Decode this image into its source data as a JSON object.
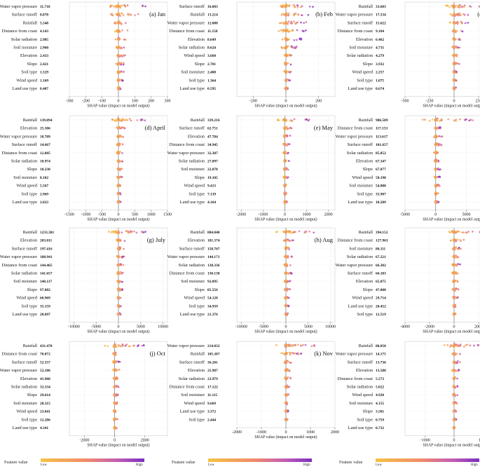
{
  "legend": {
    "title": "Feature value",
    "low": "Low",
    "high": "High"
  },
  "chart_data": [
    {
      "type": "scatter",
      "panel": "(a) Jan",
      "xlabel": "SHAP value (impact on model output)",
      "xlim": [
        -300,
        300
      ],
      "xticks": [
        -300,
        -200,
        -100,
        0,
        100,
        200,
        300
      ],
      "features": [
        {
          "name": "Water vapor pressure",
          "value": "11.718"
        },
        {
          "name": "Surface runoff",
          "value": "8.870"
        },
        {
          "name": "Rainfall",
          "value": "5.548"
        },
        {
          "name": "Distance from coast",
          "value": "4.143"
        },
        {
          "name": "Solar radiation",
          "value": "2.985"
        },
        {
          "name": "Soil moisture",
          "value": "2.960"
        },
        {
          "name": "Elevation",
          "value": "2.433"
        },
        {
          "name": "Slope",
          "value": "2.421"
        },
        {
          "name": "Soil type",
          "value": "1.529"
        },
        {
          "name": "Wind speed",
          "value": "1.169"
        },
        {
          "name": "Land use type",
          "value": "0.407"
        }
      ]
    },
    {
      "type": "scatter",
      "panel": "(b) Feb",
      "xlabel": "SHAP value (impact on model output)",
      "xlim": [
        -300,
        300
      ],
      "xticks": [
        -200,
        0,
        200
      ],
      "features": [
        {
          "name": "Surface runoff",
          "value": "16.003"
        },
        {
          "name": "Rainfall",
          "value": "13.214"
        },
        {
          "name": "Water vapor pressure",
          "value": "12.088"
        },
        {
          "name": "Distance from coast",
          "value": "11.158"
        },
        {
          "name": "Elevation",
          "value": "8.649"
        },
        {
          "name": "Solar radiation",
          "value": "8.624"
        },
        {
          "name": "Wind speed",
          "value": "3.660"
        },
        {
          "name": "Slope",
          "value": "2.701"
        },
        {
          "name": "Soil moisture",
          "value": "2.488"
        },
        {
          "name": "Soil type",
          "value": "1.364"
        },
        {
          "name": "Land use type",
          "value": "0.595"
        }
      ]
    },
    {
      "type": "scatter",
      "panel": "(c) March",
      "xlabel": "SHAP value (impact on model output)",
      "xlim": [
        -500,
        500
      ],
      "xticks": [
        -500,
        -250,
        0,
        250,
        500
      ],
      "features": [
        {
          "name": "Rainfall",
          "value": "33.603"
        },
        {
          "name": "Water vapor pressure",
          "value": "17.534"
        },
        {
          "name": "Surface runoff",
          "value": "15.622"
        },
        {
          "name": "Distance from coast",
          "value": "9.104"
        },
        {
          "name": "Elevation",
          "value": "6.462"
        },
        {
          "name": "Soil moisture",
          "value": "4.731"
        },
        {
          "name": "Solar radiation",
          "value": "4.279"
        },
        {
          "name": "Slope",
          "value": "3.932"
        },
        {
          "name": "Wind speed",
          "value": "2.257"
        },
        {
          "name": "Soil type",
          "value": "1.875"
        },
        {
          "name": "Land use type",
          "value": "0.674"
        }
      ]
    },
    {
      "type": "scatter",
      "panel": "(d) April",
      "xlabel": "SHAP value (impact on model output)",
      "xlim": [
        -1500,
        1500
      ],
      "xticks": [
        -1500,
        -1000,
        -500,
        0,
        500,
        1000,
        1500
      ],
      "features": [
        {
          "name": "Rainfall",
          "value": "139.894"
        },
        {
          "name": "Elevation",
          "value": "25.306"
        },
        {
          "name": "Water vapor pressure",
          "value": "18.709"
        },
        {
          "name": "Surface runoff",
          "value": "14.667"
        },
        {
          "name": "Distance from coast",
          "value": "12.805"
        },
        {
          "name": "Solar radiation",
          "value": "10.974"
        },
        {
          "name": "Slope",
          "value": "10.238"
        },
        {
          "name": "Soil moisture",
          "value": "8.102"
        },
        {
          "name": "Wind speed",
          "value": "5.567"
        },
        {
          "name": "Soil type",
          "value": "2.969"
        },
        {
          "name": "Land use type",
          "value": "2.023"
        }
      ]
    },
    {
      "type": "scatter",
      "panel": "(e) May",
      "xlabel": "SHAP value (impact on model output)",
      "xlim": [
        -2200,
        2300
      ],
      "xticks": [
        -2000,
        -1000,
        0,
        1000,
        2000
      ],
      "features": [
        {
          "name": "Rainfall",
          "value": "339.216"
        },
        {
          "name": "Surface runoff",
          "value": "62.751"
        },
        {
          "name": "Elevation",
          "value": "47.784"
        },
        {
          "name": "Distance from coast",
          "value": "34.945"
        },
        {
          "name": "Water vapor pressure",
          "value": "32.387"
        },
        {
          "name": "Solar radiation",
          "value": "27.097"
        },
        {
          "name": "Soil moisture",
          "value": "22.078"
        },
        {
          "name": "Slope",
          "value": "19.105"
        },
        {
          "name": "Wind speed",
          "value": "9.413"
        },
        {
          "name": "Soil type",
          "value": "7.139"
        },
        {
          "name": "Land use type",
          "value": "4.164"
        }
      ]
    },
    {
      "type": "scatter",
      "panel": "(f) June",
      "xlabel": "SHAP value (impact on model output)",
      "xlim": [
        -5000,
        11000
      ],
      "xticks": [
        -5000,
        0,
        5000,
        10000
      ],
      "features": [
        {
          "name": "Rainfall",
          "value": "986.589"
        },
        {
          "name": "Distance from coast",
          "value": "117.153"
        },
        {
          "name": "Water vapor pressure",
          "value": "113.617"
        },
        {
          "name": "Surface runoff",
          "value": "101.657"
        },
        {
          "name": "Solar radiation",
          "value": "85.852"
        },
        {
          "name": "Elevation",
          "value": "67.347"
        },
        {
          "name": "Slope",
          "value": "67.077"
        },
        {
          "name": "Wind speed",
          "value": "58.198"
        },
        {
          "name": "Soil moisture",
          "value": "54.888"
        },
        {
          "name": "Soil type",
          "value": "35.907"
        },
        {
          "name": "Land use type",
          "value": "18.289"
        }
      ]
    },
    {
      "type": "scatter",
      "panel": "(g) July",
      "xlabel": "SHAP value (impact on model output)",
      "xlim": [
        -11000,
        11000
      ],
      "xticks": [
        -10000,
        -5000,
        0,
        5000,
        10000
      ],
      "features": [
        {
          "name": "Rainfall",
          "value": "1233.381"
        },
        {
          "name": "Elevation",
          "value": "203.011"
        },
        {
          "name": "Surface runoff",
          "value": "197.416"
        },
        {
          "name": "Water vapor pressure",
          "value": "188.941"
        },
        {
          "name": "Distance from coast",
          "value": "144.465"
        },
        {
          "name": "Solar radiation",
          "value": "141.657"
        },
        {
          "name": "Soil moisture",
          "value": "140.117"
        },
        {
          "name": "Slope",
          "value": "97.082"
        },
        {
          "name": "Wind speed",
          "value": "60.969"
        },
        {
          "name": "Soil type",
          "value": "35.159"
        },
        {
          "name": "Land use type",
          "value": "20.097"
        }
      ]
    },
    {
      "type": "scatter",
      "panel": "(h) Aug",
      "xlabel": "SHAP value (impact on model output)",
      "xlim": [
        -11000,
        11000
      ],
      "xticks": [
        -10000,
        -5000,
        0,
        5000,
        10000
      ],
      "features": [
        {
          "name": "Rainfall",
          "value": "884.848"
        },
        {
          "name": "Elevation",
          "value": "181.374"
        },
        {
          "name": "Surface runoff",
          "value": "158.767"
        },
        {
          "name": "Water vapor pressure",
          "value": "144.171"
        },
        {
          "name": "Solar radiation",
          "value": "130.336"
        },
        {
          "name": "Distance from coast",
          "value": "130.138"
        },
        {
          "name": "Soil moisture",
          "value": "92.095"
        },
        {
          "name": "Slope",
          "value": "85.556"
        },
        {
          "name": "Wind speed",
          "value": "54.128"
        },
        {
          "name": "Soil type",
          "value": "34.939"
        },
        {
          "name": "Land use type",
          "value": "21.376"
        }
      ]
    },
    {
      "type": "scatter",
      "panel": "(i) Sept",
      "xlabel": "SHAP value (impact on model output)",
      "xlim": [
        -4000,
        4000
      ],
      "xticks": [
        -4000,
        -2000,
        0,
        2000,
        4000
      ],
      "features": [
        {
          "name": "Rainfall",
          "value": "394.152"
        },
        {
          "name": "Distance from coast",
          "value": "127.963"
        },
        {
          "name": "Soil moisture",
          "value": "80.111"
        },
        {
          "name": "Solar radiation",
          "value": "67.221"
        },
        {
          "name": "Water vapor pressure",
          "value": "66.302"
        },
        {
          "name": "Surface runoff",
          "value": "66.183"
        },
        {
          "name": "Elevation",
          "value": "65.075"
        },
        {
          "name": "Slope",
          "value": "47.008"
        },
        {
          "name": "Wind speed",
          "value": "29.714"
        },
        {
          "name": "Land use type",
          "value": "20.452"
        },
        {
          "name": "Soil type",
          "value": "12.519"
        }
      ]
    },
    {
      "type": "scatter",
      "panel": "(j) Oct",
      "xlabel": "SHAP value (impact on model output)",
      "xlim": [
        -3000,
        3500
      ],
      "xticks": [
        -2000,
        0,
        2000
      ],
      "features": [
        {
          "name": "Rainfall",
          "value": "431.478"
        },
        {
          "name": "Distance from coast",
          "value": "70.072"
        },
        {
          "name": "Surface runoff",
          "value": "52.557"
        },
        {
          "name": "Water vapor pressure",
          "value": "52.186"
        },
        {
          "name": "Elevation",
          "value": "41.968"
        },
        {
          "name": "Solar radiation",
          "value": "32.334"
        },
        {
          "name": "Slope",
          "value": "29.614"
        },
        {
          "name": "Soil moisture",
          "value": "28.315"
        },
        {
          "name": "Wind speed",
          "value": "23.041"
        },
        {
          "name": "Soil type",
          "value": "12.286"
        },
        {
          "name": "Land use type",
          "value": "4.341"
        }
      ]
    },
    {
      "type": "scatter",
      "panel": "(k) Nov",
      "xlabel": "SHAP value (impact on model output)",
      "xlim": [
        -2000,
        2000
      ],
      "xticks": [
        -2000,
        -1000,
        0,
        1000,
        2000
      ],
      "features": [
        {
          "name": "Water vapor pressure",
          "value": "214.032"
        },
        {
          "name": "Rainfall",
          "value": "105.387"
        },
        {
          "name": "Surface runoff",
          "value": "36.281"
        },
        {
          "name": "Elevation",
          "value": "25.987"
        },
        {
          "name": "Solar radiation",
          "value": "23.979"
        },
        {
          "name": "Distance from coast",
          "value": "17.122"
        },
        {
          "name": "Soil moisture",
          "value": "11.115"
        },
        {
          "name": "Wind speed",
          "value": "9.669"
        },
        {
          "name": "Land use type",
          "value": "3.372"
        },
        {
          "name": "Soil type",
          "value": "2.444"
        }
      ]
    },
    {
      "type": "scatter",
      "panel": "(l) Dec",
      "xlabel": "SHAP value (impact on model output)",
      "xlim": [
        -1700,
        1700
      ],
      "xticks": [
        -1000,
        0,
        1000
      ],
      "features": [
        {
          "name": "Rainfall",
          "value": "88.050"
        },
        {
          "name": "Water vapor pressure",
          "value": "14.175"
        },
        {
          "name": "Surface runoff",
          "value": "13.736"
        },
        {
          "name": "Elevation",
          "value": "13.580"
        },
        {
          "name": "Distance from coast",
          "value": "5.573"
        },
        {
          "name": "Solar radiation",
          "value": "5.022"
        },
        {
          "name": "Wind speed",
          "value": "4.920"
        },
        {
          "name": "Soil moisture",
          "value": "4.155"
        },
        {
          "name": "Slope",
          "value": "3.501"
        },
        {
          "name": "Soil type",
          "value": "0.759"
        },
        {
          "name": "Land use type",
          "value": "0.732"
        }
      ]
    }
  ]
}
